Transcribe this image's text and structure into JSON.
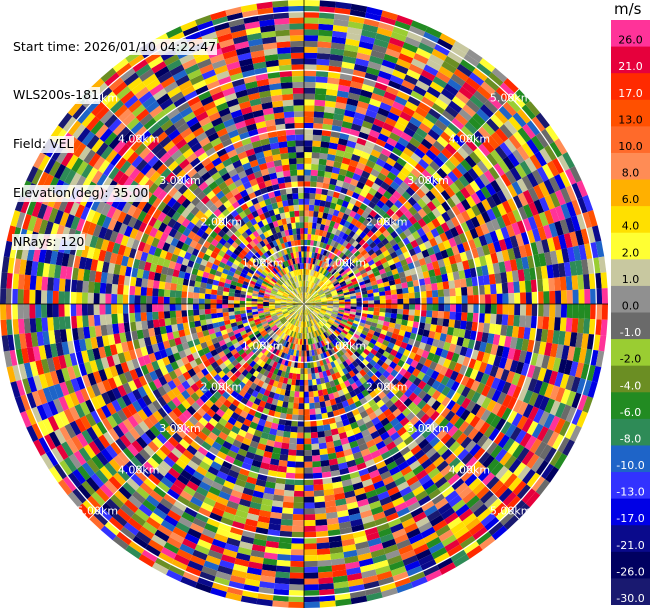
{
  "header": {
    "start_time": "Start time: 2026/01/10 04:22:47",
    "instrument": "WLS200s-181",
    "field": "Field: VEL",
    "elevation": "Elevation(deg): 35.00",
    "nrays": "NRays: 120"
  },
  "colorbar": {
    "unit": "m/s",
    "bins": [
      {
        "label": "26.0",
        "color": "#ff3399"
      },
      {
        "label": "21.0",
        "color": "#e6003c"
      },
      {
        "label": "17.0",
        "color": "#ff2a00"
      },
      {
        "label": "13.0",
        "color": "#ff5000"
      },
      {
        "label": "10.0",
        "color": "#ff6a2a"
      },
      {
        "label": "8.0",
        "color": "#ff8c55"
      },
      {
        "label": "6.0",
        "color": "#ffb000"
      },
      {
        "label": "4.0",
        "color": "#ffe000"
      },
      {
        "label": "2.0",
        "color": "#ffff33"
      },
      {
        "label": "1.0",
        "color": "#c8c8a0"
      },
      {
        "label": "0.0",
        "color": "#909090"
      },
      {
        "label": "-1.0",
        "color": "#6a6a6a"
      },
      {
        "label": "-2.0",
        "color": "#9acd32"
      },
      {
        "label": "-4.0",
        "color": "#6b8e23"
      },
      {
        "label": "-6.0",
        "color": "#228b22"
      },
      {
        "label": "-8.0",
        "color": "#2e8b57"
      },
      {
        "label": "-10.0",
        "color": "#1e64c8"
      },
      {
        "label": "-13.0",
        "color": "#3232ff"
      },
      {
        "label": "-17.0",
        "color": "#0000e6"
      },
      {
        "label": "-21.0",
        "color": "#0a0a8c"
      },
      {
        "label": "-26.0",
        "color": "#000060"
      },
      {
        "label": "-30.0",
        "color": "#191970"
      }
    ]
  },
  "chart_data": {
    "type": "heatmap",
    "projection": "polar PPI",
    "field": "VEL",
    "units": "m/s",
    "nrays": 120,
    "range_rings_km": [
      1.0,
      2.0,
      3.0,
      4.0,
      5.0
    ],
    "ring_labels": [
      "1.00km",
      "2.00km",
      "3.00km",
      "4.00km",
      "5.00km"
    ],
    "max_range_km": 5.2,
    "color_scale_range": [
      -30,
      26
    ]
  }
}
